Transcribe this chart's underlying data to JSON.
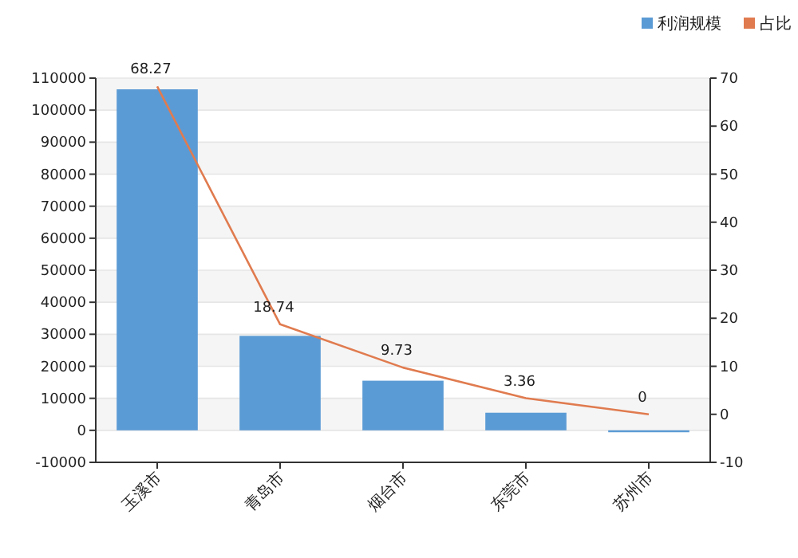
{
  "chart_data": {
    "type": "bar",
    "categories": [
      "玉溪市",
      "青岛市",
      "烟台市",
      "东莞市",
      "苏州市"
    ],
    "series": [
      {
        "name": "利润规模",
        "color": "#5b9bd5",
        "values": [
          106500,
          29500,
          15500,
          5500,
          -600
        ]
      },
      {
        "name": "占比",
        "type": "line",
        "axis": "y2",
        "color": "#e07b4f",
        "values": [
          68.27,
          18.74,
          9.73,
          3.36,
          0
        ],
        "value_labels": [
          "68.27",
          "18.74",
          "9.73",
          "3.36",
          "0"
        ]
      }
    ],
    "ylim": [
      -10000,
      110000
    ],
    "yticks": [
      -10000,
      0,
      10000,
      20000,
      30000,
      40000,
      50000,
      60000,
      70000,
      80000,
      90000,
      100000,
      110000
    ],
    "y2lim": [
      -10,
      70
    ],
    "y2ticks": [
      -10,
      0,
      10,
      20,
      30,
      40,
      50,
      60,
      70
    ],
    "grid": "y",
    "legend": "top right",
    "marker": "none",
    "line_style": "solid"
  }
}
